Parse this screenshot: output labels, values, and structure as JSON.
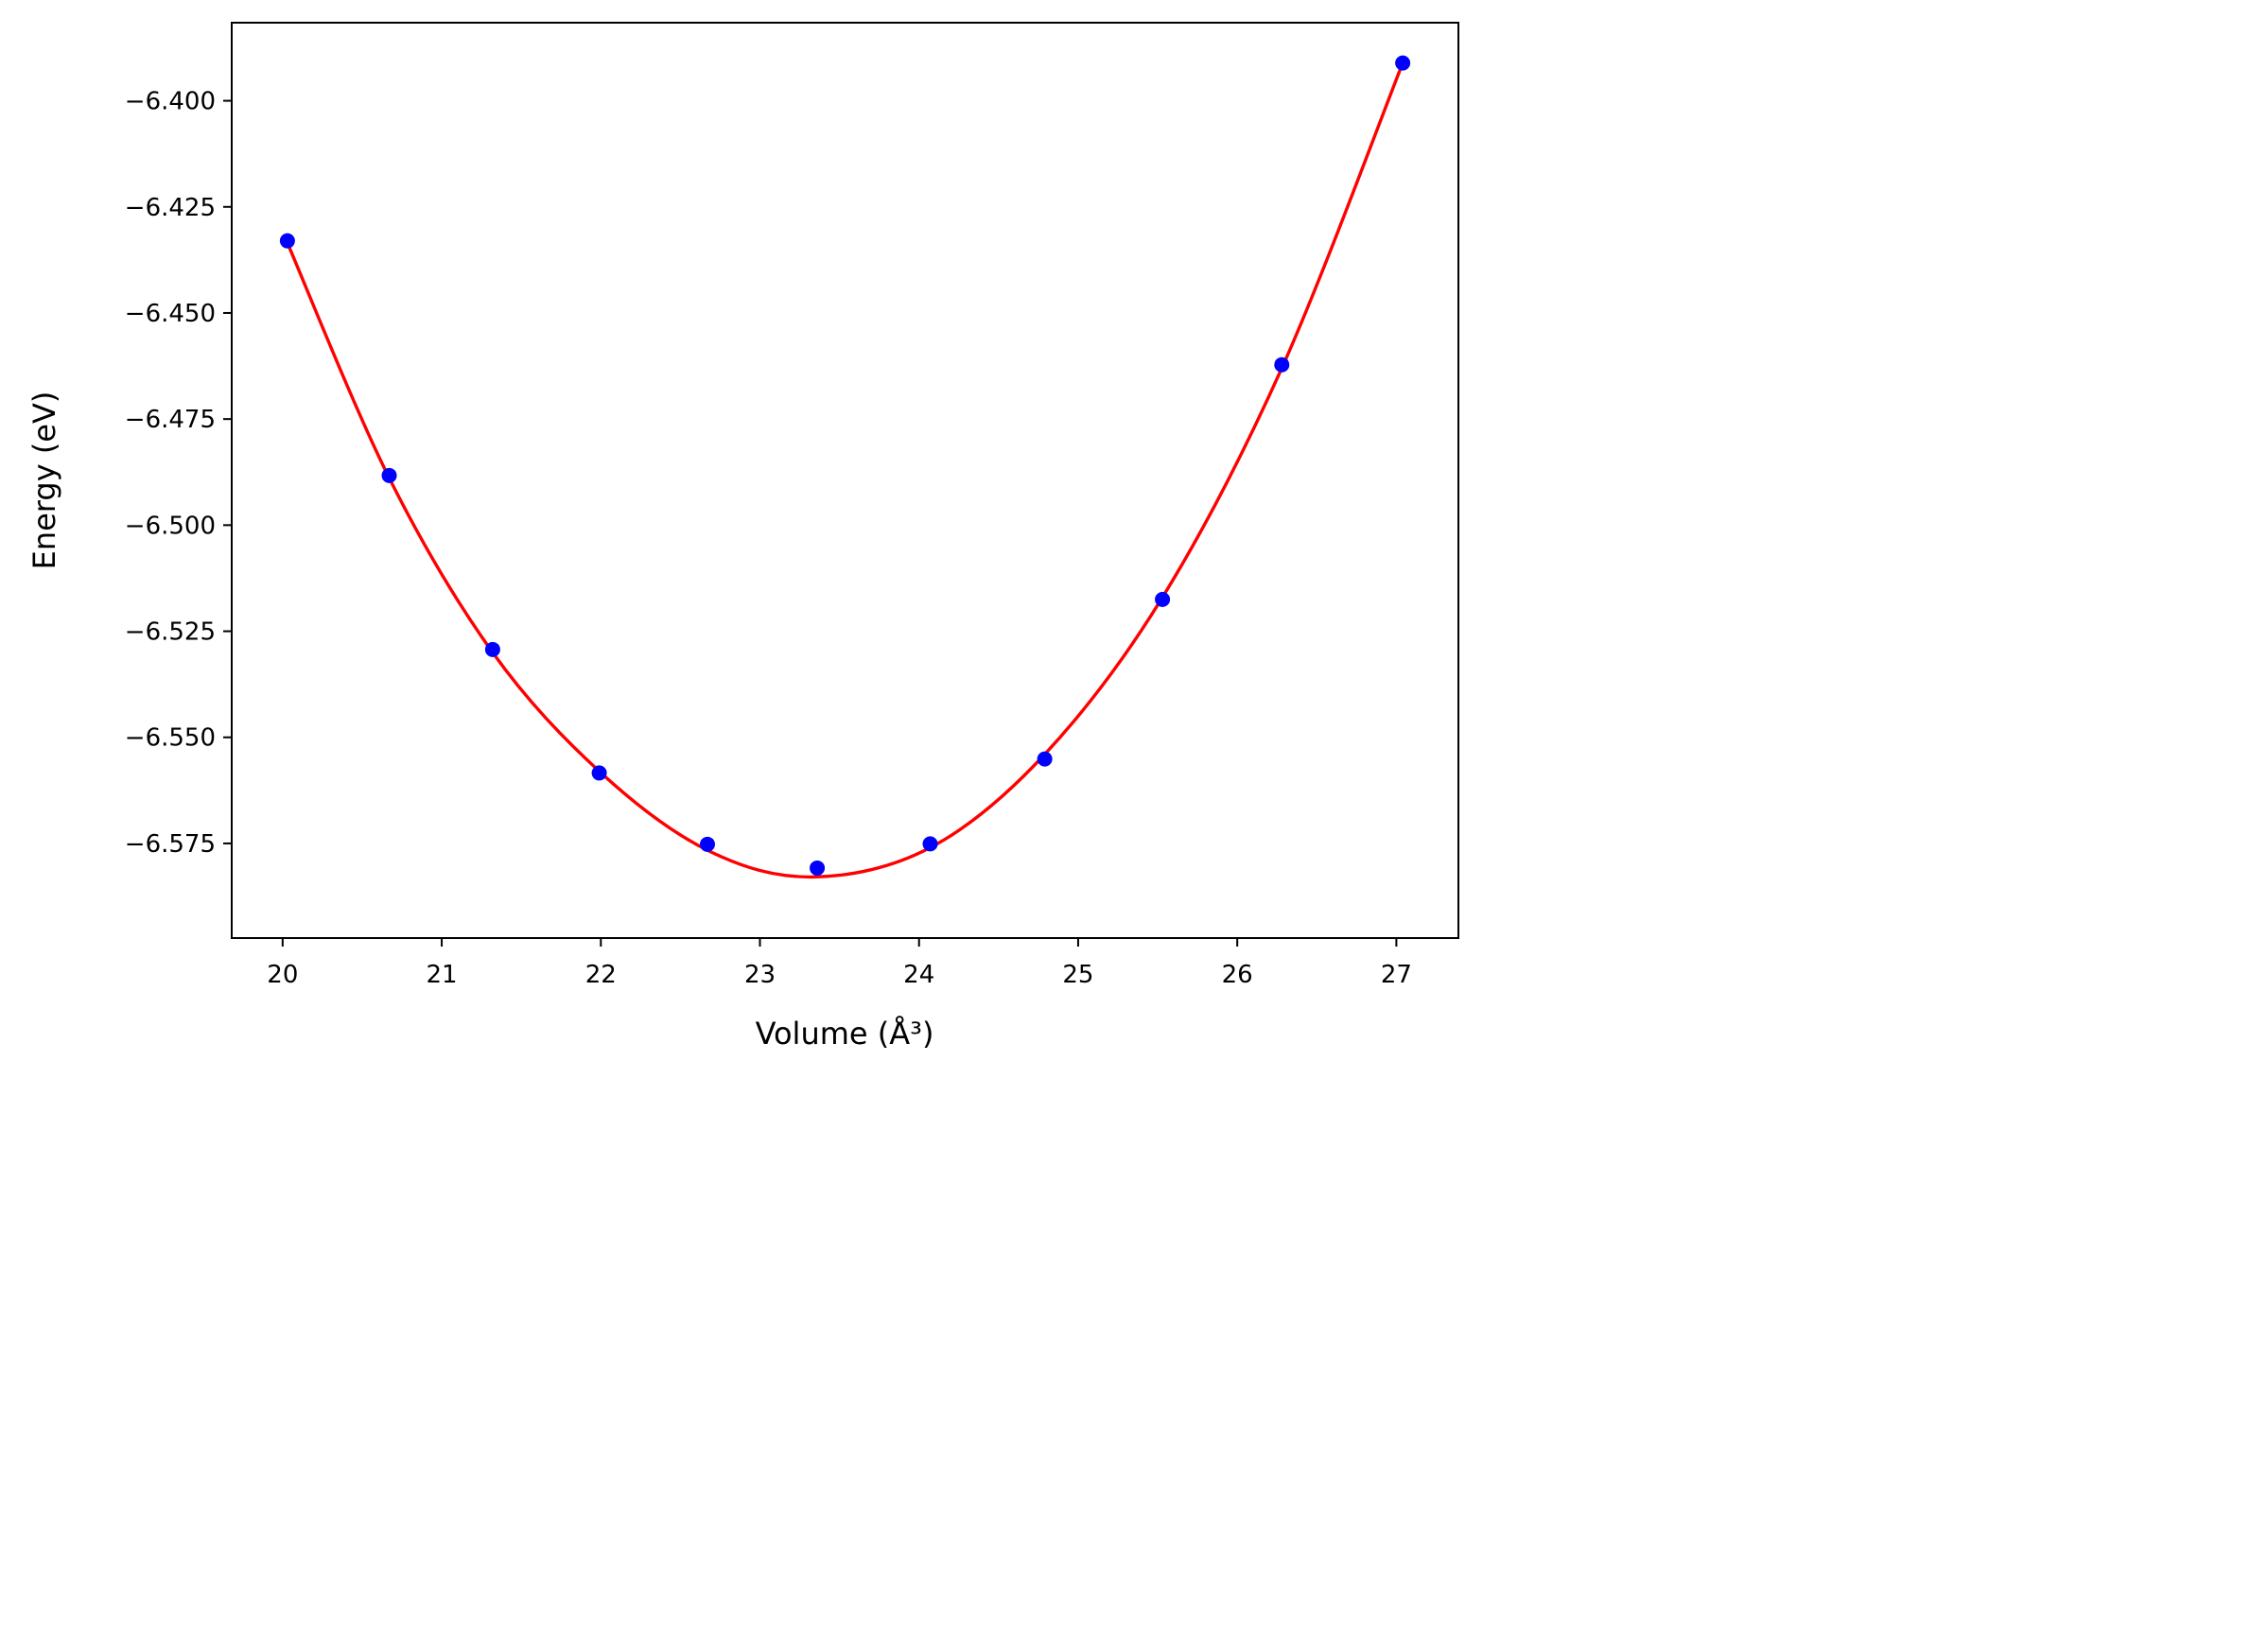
{
  "chart_data": {
    "type": "scatter",
    "xlabel": "Volume (Å³)",
    "ylabel": "Energy (eV)",
    "xlim": [
      19.68,
      27.39
    ],
    "ylim": [
      -6.5973,
      -6.3816
    ],
    "xticks": [
      20,
      21,
      22,
      23,
      24,
      25,
      26,
      27
    ],
    "xtick_labels": [
      "20",
      "21",
      "22",
      "23",
      "24",
      "25",
      "26",
      "27"
    ],
    "yticks": [
      -6.4,
      -6.425,
      -6.45,
      -6.475,
      -6.5,
      -6.525,
      -6.55,
      -6.575
    ],
    "ytick_labels": [
      "−6.400",
      "−6.425",
      "−6.450",
      "−6.475",
      "−6.500",
      "−6.525",
      "−6.550",
      "−6.575"
    ],
    "grid": false,
    "series": [
      {
        "kind": "points",
        "color": "#0000ff",
        "x": [
          20.03,
          20.67,
          21.32,
          21.99,
          22.67,
          23.36,
          24.07,
          24.79,
          25.53,
          26.28,
          27.04
        ],
        "y": [
          -6.433,
          -6.4883,
          -6.5293,
          -6.5584,
          -6.5752,
          -6.5808,
          -6.5751,
          -6.5551,
          -6.5175,
          -6.4622,
          -6.3911
        ]
      },
      {
        "kind": "fit-curve",
        "color": "#ff0000",
        "x": [
          20.03,
          20.67,
          21.32,
          21.99,
          22.67,
          23.33,
          24.07,
          24.79,
          25.53,
          26.28,
          27.04
        ],
        "y": [
          -6.4335,
          -6.4889,
          -6.53,
          -6.558,
          -6.5766,
          -6.5829,
          -6.576,
          -6.554,
          -6.517,
          -6.463,
          -6.3911
        ]
      }
    ]
  }
}
